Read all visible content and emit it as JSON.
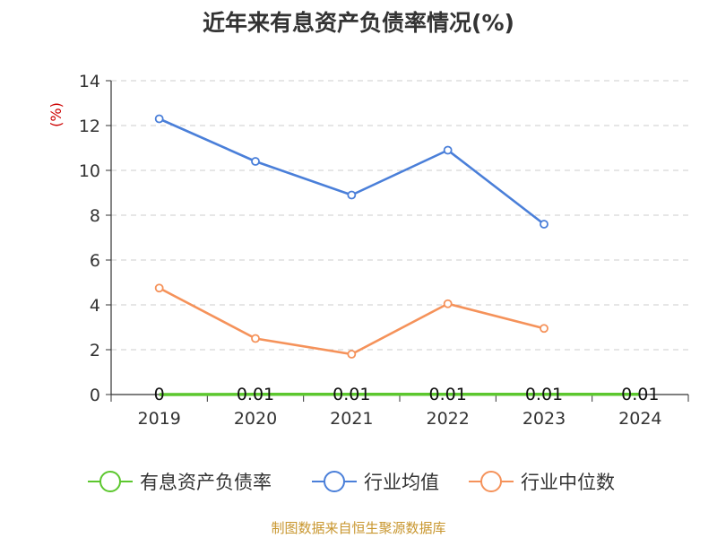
{
  "chart_data": {
    "type": "line",
    "title": "近年来有息资产负债率情况(%)",
    "ylabel": "(%)",
    "xlabel": "",
    "categories": [
      "2019",
      "2020",
      "2021",
      "2022",
      "2023",
      "2024"
    ],
    "ylim": [
      0,
      14
    ],
    "yticks": [
      "0",
      "2",
      "4",
      "6",
      "8",
      "10",
      "12",
      "14"
    ],
    "grid": true,
    "legend_position": "bottom",
    "series": [
      {
        "name": "有息资产负债率",
        "color": "#5cc72e",
        "values": [
          0,
          0.01,
          0.01,
          0.01,
          0.01,
          0.01
        ],
        "labels": [
          "0",
          "0.01",
          "0.01",
          "0.01",
          "0.01",
          "0.01"
        ]
      },
      {
        "name": "行业均值",
        "color": "#4a7fd9",
        "values": [
          12.3,
          10.4,
          8.9,
          10.9,
          7.6,
          null
        ]
      },
      {
        "name": "行业中位数",
        "color": "#f5925a",
        "values": [
          4.75,
          2.5,
          1.8,
          4.05,
          2.95,
          null
        ]
      }
    ]
  },
  "source": "制图数据来自恒生聚源数据库"
}
